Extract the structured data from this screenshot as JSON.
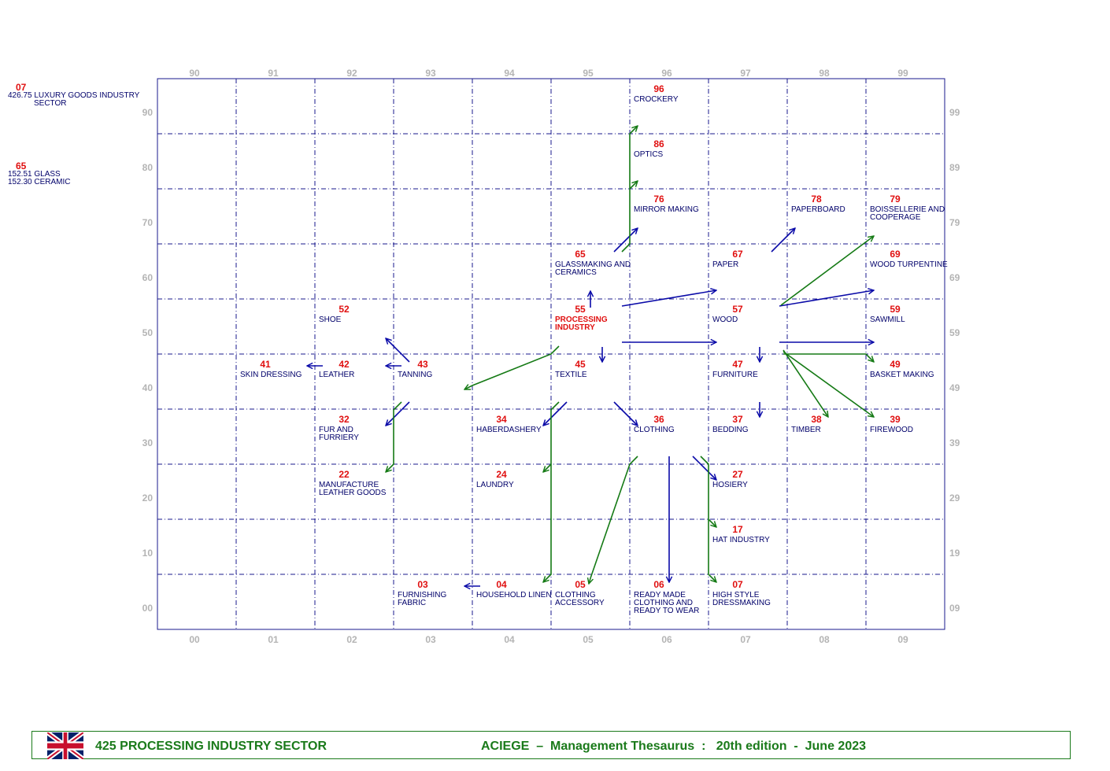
{
  "side_notes": [
    {
      "code": "07",
      "lines": [
        "426.75 LUXURY GOODS INDUSTRY",
        "SECTOR"
      ]
    },
    {
      "code": "65",
      "lines": [
        "152.51 GLASS",
        "152.30 CERAMIC"
      ]
    }
  ],
  "grid": {
    "top_labels": [
      "90",
      "91",
      "92",
      "93",
      "94",
      "95",
      "96",
      "97",
      "98",
      "99"
    ],
    "bottom_labels": [
      "00",
      "01",
      "02",
      "03",
      "04",
      "05",
      "06",
      "07",
      "08",
      "09"
    ],
    "left_labels": [
      "90",
      "80",
      "70",
      "60",
      "50",
      "40",
      "30",
      "20",
      "10",
      "00"
    ],
    "right_labels": [
      "99",
      "89",
      "79",
      "69",
      "59",
      "49",
      "39",
      "29",
      "19",
      "09"
    ]
  },
  "nodes": [
    {
      "code": "96",
      "col": 6,
      "row": 0,
      "lines": [
        "CROCKERY"
      ]
    },
    {
      "code": "86",
      "col": 6,
      "row": 1,
      "lines": [
        "OPTICS"
      ]
    },
    {
      "code": "76",
      "col": 6,
      "row": 2,
      "lines": [
        "MIRROR MAKING"
      ]
    },
    {
      "code": "78",
      "col": 8,
      "row": 2,
      "lines": [
        "PAPERBOARD"
      ]
    },
    {
      "code": "79",
      "col": 9,
      "row": 2,
      "lines": [
        "BOISSELLERIE AND",
        "COOPERAGE"
      ]
    },
    {
      "code": "65",
      "col": 5,
      "row": 3,
      "lines": [
        "GLASSMAKING AND",
        "CERAMICS"
      ]
    },
    {
      "code": "67",
      "col": 7,
      "row": 3,
      "lines": [
        "PAPER"
      ]
    },
    {
      "code": "69",
      "col": 9,
      "row": 3,
      "lines": [
        "WOOD TURPENTINE"
      ]
    },
    {
      "code": "52",
      "col": 2,
      "row": 4,
      "lines": [
        "SHOE"
      ]
    },
    {
      "code": "55",
      "col": 5,
      "row": 4,
      "lines": [
        "PROCESSING",
        "INDUSTRY"
      ],
      "main": true
    },
    {
      "code": "57",
      "col": 7,
      "row": 4,
      "lines": [
        "WOOD"
      ]
    },
    {
      "code": "59",
      "col": 9,
      "row": 4,
      "lines": [
        "SAWMILL"
      ]
    },
    {
      "code": "41",
      "col": 1,
      "row": 5,
      "lines": [
        "SKIN DRESSING"
      ]
    },
    {
      "code": "42",
      "col": 2,
      "row": 5,
      "lines": [
        "LEATHER"
      ]
    },
    {
      "code": "43",
      "col": 3,
      "row": 5,
      "lines": [
        "TANNING"
      ]
    },
    {
      "code": "45",
      "col": 5,
      "row": 5,
      "lines": [
        "TEXTILE"
      ]
    },
    {
      "code": "47",
      "col": 7,
      "row": 5,
      "lines": [
        "FURNITURE"
      ]
    },
    {
      "code": "49",
      "col": 9,
      "row": 5,
      "lines": [
        "BASKET MAKING"
      ]
    },
    {
      "code": "32",
      "col": 2,
      "row": 6,
      "lines": [
        "FUR AND",
        "FURRIERY"
      ]
    },
    {
      "code": "34",
      "col": 4,
      "row": 6,
      "lines": [
        "HABERDASHERY"
      ]
    },
    {
      "code": "36",
      "col": 6,
      "row": 6,
      "lines": [
        "CLOTHING"
      ]
    },
    {
      "code": "37",
      "col": 7,
      "row": 6,
      "lines": [
        "BEDDING"
      ]
    },
    {
      "code": "38",
      "col": 8,
      "row": 6,
      "lines": [
        "TIMBER"
      ]
    },
    {
      "code": "39",
      "col": 9,
      "row": 6,
      "lines": [
        "FIREWOOD"
      ]
    },
    {
      "code": "22",
      "col": 2,
      "row": 7,
      "lines": [
        "MANUFACTURE",
        "LEATHER GOODS"
      ]
    },
    {
      "code": "24",
      "col": 4,
      "row": 7,
      "lines": [
        "LAUNDRY"
      ]
    },
    {
      "code": "27",
      "col": 7,
      "row": 7,
      "lines": [
        "HOSIERY"
      ]
    },
    {
      "code": "17",
      "col": 7,
      "row": 8,
      "lines": [
        "HAT INDUSTRY"
      ]
    },
    {
      "code": "03",
      "col": 3,
      "row": 9,
      "lines": [
        "FURNISHING",
        "FABRIC"
      ]
    },
    {
      "code": "04",
      "col": 4,
      "row": 9,
      "lines": [
        "HOUSEHOLD LINEN"
      ]
    },
    {
      "code": "05",
      "col": 5,
      "row": 9,
      "lines": [
        "CLOTHING",
        "ACCESSORY"
      ]
    },
    {
      "code": "06",
      "col": 6,
      "row": 9,
      "lines": [
        "READY MADE",
        "CLOTHING AND",
        "READY TO WEAR"
      ]
    },
    {
      "code": "07",
      "col": 7,
      "row": 9,
      "lines": [
        "HIGH STYLE",
        "DRESSMAKING"
      ]
    }
  ],
  "colors": {
    "grid": "#1a1a8c",
    "axis_label": "#b4b4b4",
    "code": "#e01010",
    "label": "#00006a",
    "main_label": "#e01010",
    "arrow_blue": "#0a0aa8",
    "arrow_green": "#157a15",
    "footer_text": "#1a7a1a"
  },
  "footer": {
    "flag": "uk-flag-icon",
    "left_text": "425  PROCESSING INDUSTRY SECTOR",
    "right_text": "ACIEGE  –  Management Thesaurus  :   20th edition  -  June 2023"
  }
}
